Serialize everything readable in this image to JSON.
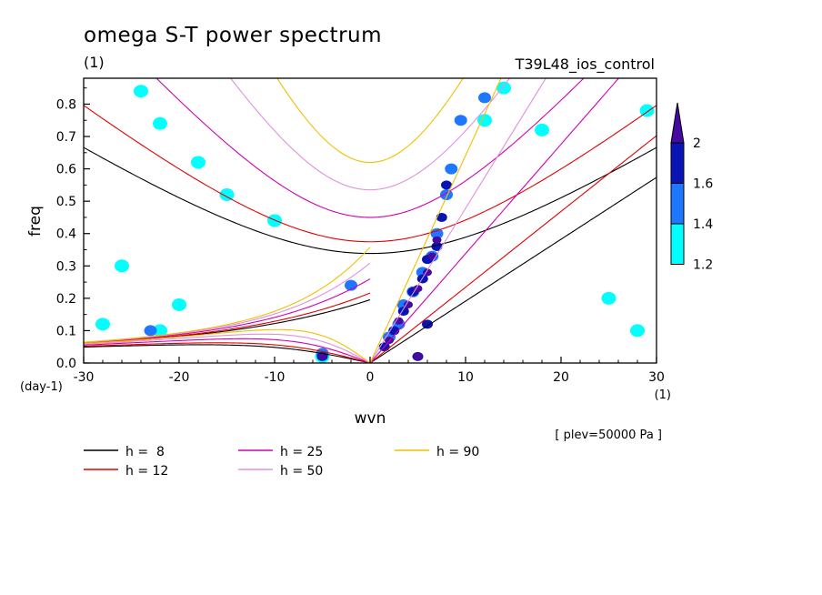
{
  "chart_data": {
    "type": "heatmap",
    "title": "omega S-T power spectrum",
    "subtitle": "(1)",
    "run_label": "T39L48_ios_control",
    "xlabel": "wvn",
    "ylabel": "freq",
    "x_unit": "(1)",
    "y_unit": "(day-1)",
    "level_note": "[ plev=50000 Pa ]",
    "xlim": [
      -30,
      30
    ],
    "ylim": [
      0,
      0.88
    ],
    "x_ticks": [
      -30,
      -20,
      -10,
      0,
      10,
      20,
      30
    ],
    "x_tick_labels": [
      "-30",
      "-20",
      "-10",
      "0",
      "10",
      "20",
      "30"
    ],
    "y_ticks": [
      0.0,
      0.1,
      0.2,
      0.3,
      0.4,
      0.5,
      0.6,
      0.7,
      0.8
    ],
    "y_tick_labels": [
      "0.0",
      "0.1",
      "0.2",
      "0.3",
      "0.4",
      "0.5",
      "0.6",
      "0.7",
      "0.8"
    ],
    "colorbar": {
      "levels": [
        1.2,
        1.4,
        1.6,
        2
      ],
      "level_labels": [
        "1.2",
        "1.4",
        "1.6",
        "2"
      ],
      "colors": [
        "#00ffff",
        "#1e78ff",
        "#0a14b4",
        "#460aa0"
      ]
    },
    "contours": [
      {
        "value": 1.2,
        "points": [
          [
            -24,
            0.84
          ],
          [
            -22,
            0.74
          ],
          [
            -18,
            0.62
          ],
          [
            -15,
            0.52
          ],
          [
            -10,
            0.44
          ],
          [
            -26,
            0.3
          ],
          [
            -20,
            0.18
          ],
          [
            -28,
            0.12
          ],
          [
            12,
            0.75
          ],
          [
            14,
            0.85
          ],
          [
            18,
            0.72
          ],
          [
            -22,
            0.1
          ],
          [
            -5,
            0.02
          ],
          [
            25,
            0.2
          ],
          [
            28,
            0.1
          ],
          [
            29,
            0.78
          ]
        ]
      },
      {
        "value": 1.4,
        "points": [
          [
            2.0,
            0.08
          ],
          [
            3.0,
            0.12
          ],
          [
            3.5,
            0.18
          ],
          [
            4.5,
            0.22
          ],
          [
            5.5,
            0.28
          ],
          [
            6.5,
            0.33
          ],
          [
            7.0,
            0.4
          ],
          [
            8.0,
            0.52
          ],
          [
            8.5,
            0.6
          ],
          [
            9.5,
            0.75
          ],
          [
            12,
            0.82
          ],
          [
            -5,
            0.03
          ],
          [
            -23,
            0.1
          ],
          [
            -2,
            0.24
          ]
        ]
      },
      {
        "value": 1.6,
        "points": [
          [
            1.5,
            0.05
          ],
          [
            2.5,
            0.1
          ],
          [
            3.5,
            0.16
          ],
          [
            4.5,
            0.22
          ],
          [
            5.5,
            0.26
          ],
          [
            6.0,
            0.32
          ],
          [
            7.0,
            0.36
          ],
          [
            7.5,
            0.45
          ],
          [
            8.0,
            0.55
          ],
          [
            5.0,
            0.02
          ],
          [
            -5,
            0.02
          ],
          [
            6.0,
            0.12
          ]
        ]
      },
      {
        "value": 2,
        "points": [
          [
            2.0,
            0.07
          ],
          [
            3.0,
            0.13
          ],
          [
            4.0,
            0.18
          ],
          [
            5.0,
            0.23
          ],
          [
            6.0,
            0.28
          ],
          [
            6.5,
            0.33
          ],
          [
            7.0,
            0.38
          ],
          [
            5.0,
            0.02
          ],
          [
            -5,
            0.02
          ]
        ]
      }
    ],
    "series": [
      {
        "name": "h =  8",
        "color": "#000000"
      },
      {
        "name": "h = 12",
        "color": "#e00000"
      },
      {
        "name": "h = 25",
        "color": "#d000b0"
      },
      {
        "name": "h = 50",
        "color": "#e090e0"
      },
      {
        "name": "h = 90",
        "color": "#f0c000"
      }
    ],
    "equivalent_depths_m": [
      8,
      12,
      25,
      50,
      90
    ],
    "grid": false
  }
}
